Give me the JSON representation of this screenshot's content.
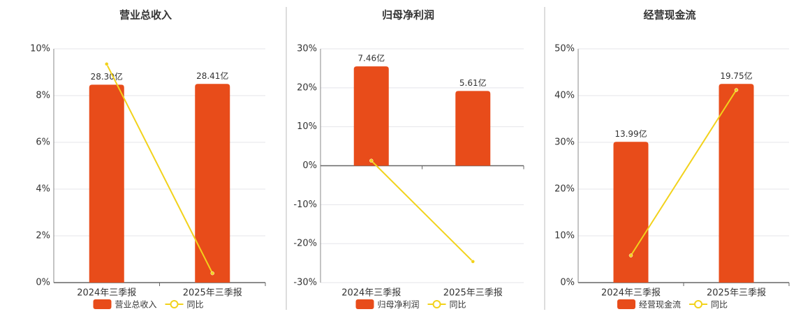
{
  "chart_data": [
    {
      "type": "combo",
      "title": "营业总收入",
      "categories": [
        "2024年三季报",
        "2025年三季报"
      ],
      "series": [
        {
          "name": "营业总收入",
          "type": "bar",
          "color": "#e84c1a",
          "values": [
            28.3,
            28.41
          ],
          "value_labels": [
            "28.30亿",
            "28.41亿"
          ]
        },
        {
          "name": "同比",
          "type": "line",
          "color": "#f2d21b",
          "values": [
            9.35,
            0.4
          ]
        }
      ],
      "ylim": [
        0,
        10
      ],
      "yticks": [
        {
          "value": 0,
          "label": "0%"
        },
        {
          "value": 2,
          "label": "2%"
        },
        {
          "value": 4,
          "label": "4%"
        },
        {
          "value": 6,
          "label": "6%"
        },
        {
          "value": 8,
          "label": "8%"
        },
        {
          "value": 10,
          "label": "10%"
        }
      ],
      "grid": true
    },
    {
      "type": "combo",
      "title": "归母净利润",
      "categories": [
        "2024年三季报",
        "2025年三季报"
      ],
      "series": [
        {
          "name": "归母净利润",
          "type": "bar",
          "color": "#e84c1a",
          "values": [
            7.46,
            5.61
          ],
          "value_labels": [
            "7.46亿",
            "5.61亿"
          ]
        },
        {
          "name": "同比",
          "type": "line",
          "color": "#f2d21b",
          "values": [
            1.3,
            -24.6
          ]
        }
      ],
      "ylim": [
        -30,
        30
      ],
      "yticks": [
        {
          "value": -30,
          "label": "-30%"
        },
        {
          "value": -20,
          "label": "-20%"
        },
        {
          "value": -10,
          "label": "-10%"
        },
        {
          "value": 0,
          "label": "0%"
        },
        {
          "value": 10,
          "label": "10%"
        },
        {
          "value": 20,
          "label": "20%"
        },
        {
          "value": 30,
          "label": "30%"
        }
      ],
      "grid": true
    },
    {
      "type": "combo",
      "title": "经营现金流",
      "categories": [
        "2024年三季报",
        "2025年三季报"
      ],
      "series": [
        {
          "name": "经营现金流",
          "type": "bar",
          "color": "#e84c1a",
          "values": [
            13.99,
            19.75
          ],
          "value_labels": [
            "13.99亿",
            "19.75亿"
          ]
        },
        {
          "name": "同比",
          "type": "line",
          "color": "#f2d21b",
          "values": [
            5.8,
            41.2
          ]
        }
      ],
      "ylim": [
        0,
        50
      ],
      "yticks": [
        {
          "value": 0,
          "label": "0%"
        },
        {
          "value": 10,
          "label": "10%"
        },
        {
          "value": 20,
          "label": "20%"
        },
        {
          "value": 30,
          "label": "30%"
        },
        {
          "value": 40,
          "label": "40%"
        },
        {
          "value": 50,
          "label": "50%"
        }
      ],
      "grid": true
    }
  ]
}
